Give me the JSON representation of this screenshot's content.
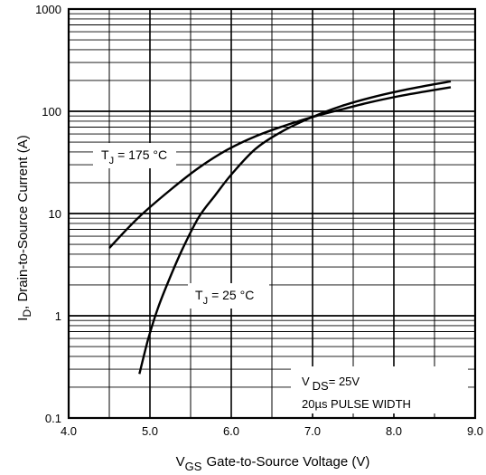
{
  "chart_data": {
    "type": "line",
    "title": "",
    "xlabel": {
      "symbol": "V",
      "subscript": "GS",
      "text": "Gate-to-Source Voltage (V)"
    },
    "ylabel": {
      "symbol": "I",
      "subscript": "D",
      "text": ",  Drain-to-Source Current (A)"
    },
    "xlim": [
      4.0,
      9.0
    ],
    "ylim": [
      0.1,
      1000
    ],
    "yscale": "log",
    "x_tick_labels": [
      "4.0",
      "5.0",
      "6.0",
      "7.0",
      "8.0",
      "9.0"
    ],
    "y_tick_labels": [
      "0.1",
      "1",
      "10",
      "100",
      "1000"
    ],
    "grid": true,
    "series": [
      {
        "label": {
          "symbol": "T",
          "subscript": "J",
          "text": "= 175 °C"
        },
        "x": [
          4.5,
          4.85,
          5.25,
          5.6,
          5.95,
          6.3,
          6.65,
          7.0,
          7.35,
          7.7,
          8.05,
          8.4,
          8.7
        ],
        "y": [
          4.6,
          9.0,
          17.0,
          28.0,
          42.0,
          57.0,
          72.0,
          88.0,
          104.0,
          122.0,
          140.0,
          157.0,
          172.0
        ]
      },
      {
        "label": {
          "symbol": "T",
          "subscript": "J",
          "text": "= 25 °C"
        },
        "x": [
          4.87,
          4.98,
          5.1,
          5.25,
          5.4,
          5.6,
          5.8,
          6.0,
          6.3,
          6.65,
          7.0,
          7.35,
          7.7,
          8.05,
          8.4,
          8.7
        ],
        "y": [
          0.27,
          0.6,
          1.2,
          2.4,
          4.5,
          9.2,
          15.0,
          24.0,
          43.0,
          65.0,
          88.0,
          112.0,
          135.0,
          157.0,
          178.0,
          196.0
        ]
      }
    ],
    "annotation": {
      "symbol": "V",
      "subscript": "DS",
      "text": "= 25V",
      "line2": "20µs PULSE WIDTH"
    }
  }
}
